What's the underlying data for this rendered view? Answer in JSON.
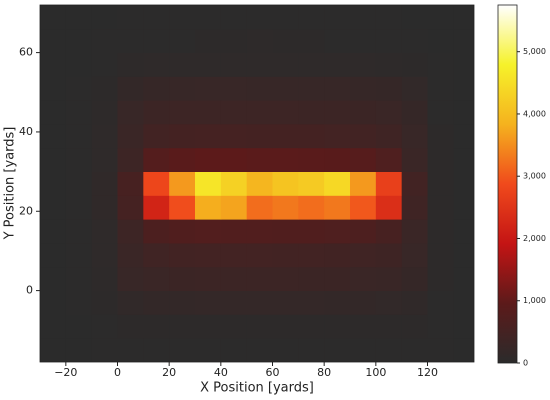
{
  "chart_data": {
    "type": "heatmap",
    "x_label": "X Position [yards]",
    "y_label": "Y Position [yards]",
    "xlim": [
      -30,
      138
    ],
    "ylim": [
      -18,
      72
    ],
    "xticks": [
      {
        "value": -20,
        "label": "−20"
      },
      0,
      20,
      40,
      60,
      80,
      100,
      120
    ],
    "yticks": [
      0,
      20,
      40,
      60
    ],
    "xbins": [
      -30,
      -20,
      -10,
      0,
      10,
      20,
      30,
      40,
      50,
      60,
      70,
      80,
      90,
      100,
      110,
      120,
      130,
      140
    ],
    "ybins": [
      -18,
      -12,
      -6,
      0,
      6,
      12,
      18,
      24,
      30,
      36,
      42,
      48,
      54,
      60,
      66,
      72
    ],
    "colormap": [
      "#2b2b2b",
      "#5c1a1a",
      "#c41414",
      "#f04a1c",
      "#f5b21e",
      "#f6f22a",
      "#ffffff"
    ],
    "clim": [
      0,
      5750
    ],
    "cticks": [
      0,
      {
        "value": 1000,
        "label": "1,000"
      },
      {
        "value": 2000,
        "label": "2,000"
      },
      {
        "value": 3000,
        "label": "3,000"
      },
      {
        "value": 4000,
        "label": "4,000"
      },
      {
        "value": 5000,
        "label": "5,000"
      }
    ],
    "values": [
      [
        5,
        5,
        10,
        15,
        20,
        20,
        20,
        20,
        20,
        20,
        20,
        20,
        20,
        20,
        15,
        10,
        5
      ],
      [
        5,
        5,
        15,
        30,
        40,
        40,
        40,
        40,
        40,
        40,
        40,
        40,
        40,
        40,
        30,
        15,
        5
      ],
      [
        5,
        10,
        40,
        120,
        150,
        160,
        170,
        170,
        170,
        170,
        170,
        160,
        150,
        140,
        100,
        20,
        5
      ],
      [
        5,
        10,
        60,
        250,
        300,
        320,
        340,
        340,
        330,
        330,
        320,
        320,
        300,
        280,
        200,
        30,
        5
      ],
      [
        5,
        15,
        70,
        300,
        420,
        450,
        470,
        470,
        460,
        450,
        450,
        440,
        420,
        380,
        250,
        30,
        5
      ],
      [
        5,
        15,
        80,
        350,
        650,
        720,
        760,
        750,
        740,
        730,
        720,
        700,
        660,
        550,
        300,
        30,
        5
      ],
      [
        5,
        20,
        100,
        500,
        2200,
        2900,
        3800,
        3700,
        3200,
        3300,
        3200,
        3300,
        3000,
        2400,
        400,
        30,
        5
      ],
      [
        5,
        20,
        100,
        550,
        2800,
        3600,
        4600,
        4300,
        3900,
        4100,
        4200,
        4400,
        3600,
        2700,
        450,
        30,
        5
      ],
      [
        5,
        15,
        80,
        350,
        800,
        900,
        950,
        950,
        920,
        920,
        900,
        880,
        850,
        700,
        300,
        30,
        5
      ],
      [
        5,
        15,
        70,
        300,
        450,
        480,
        500,
        500,
        490,
        490,
        480,
        470,
        450,
        400,
        250,
        30,
        5
      ],
      [
        5,
        10,
        60,
        250,
        330,
        350,
        360,
        360,
        350,
        350,
        340,
        330,
        320,
        300,
        200,
        20,
        5
      ],
      [
        5,
        10,
        40,
        150,
        220,
        240,
        250,
        250,
        240,
        240,
        240,
        230,
        220,
        200,
        130,
        15,
        5
      ],
      [
        5,
        5,
        20,
        50,
        70,
        80,
        80,
        80,
        80,
        80,
        80,
        70,
        70,
        60,
        40,
        10,
        5
      ],
      [
        5,
        5,
        10,
        20,
        25,
        25,
        30,
        40,
        60,
        30,
        30,
        25,
        25,
        20,
        15,
        5,
        5
      ],
      [
        5,
        5,
        5,
        10,
        10,
        10,
        10,
        10,
        10,
        10,
        10,
        10,
        10,
        10,
        5,
        5,
        5
      ]
    ]
  }
}
